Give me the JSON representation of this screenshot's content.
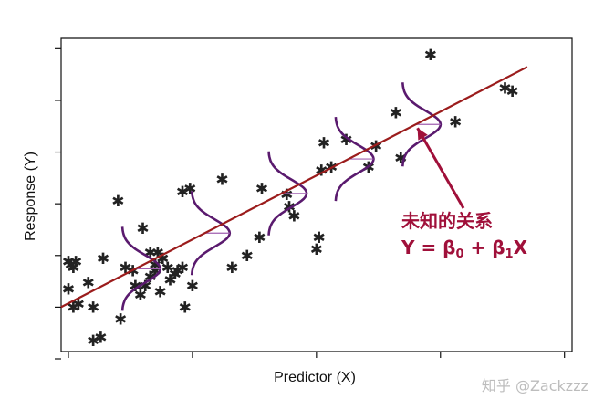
{
  "chart_data": {
    "type": "scatter",
    "xlabel": "Predictor (X)",
    "ylabel": "Response (Y)",
    "xlim": [
      0,
      10.3
    ],
    "ylim": [
      0,
      10.3
    ],
    "x_ticks": [
      0,
      2.5,
      5,
      7.5,
      10
    ],
    "y_ticks": [
      0,
      1.7,
      3.4,
      5.1,
      6.8,
      8.5,
      10.2
    ],
    "tick_labels_shown": false,
    "grid": false,
    "points_marker": "asterisk",
    "points": [
      [
        0,
        3.2
      ],
      [
        0.05,
        3.1
      ],
      [
        0.1,
        3.0
      ],
      [
        0.15,
        3.2
      ],
      [
        0.0,
        2.3
      ],
      [
        0.1,
        1.7
      ],
      [
        0.2,
        1.8
      ],
      [
        0.4,
        2.5
      ],
      [
        0.5,
        0.6
      ],
      [
        0.65,
        0.7
      ],
      [
        0.5,
        1.7
      ],
      [
        0.7,
        3.3
      ],
      [
        1.0,
        5.2
      ],
      [
        1.05,
        1.3
      ],
      [
        1.15,
        3.0
      ],
      [
        1.3,
        2.9
      ],
      [
        1.35,
        2.4
      ],
      [
        1.45,
        2.1
      ],
      [
        1.55,
        2.4
      ],
      [
        1.5,
        4.3
      ],
      [
        1.65,
        3.5
      ],
      [
        1.65,
        2.7
      ],
      [
        1.75,
        2.9
      ],
      [
        1.75,
        3.1
      ],
      [
        1.9,
        3.3
      ],
      [
        1.8,
        3.5
      ],
      [
        1.85,
        2.2
      ],
      [
        2.0,
        3.0
      ],
      [
        2.05,
        2.6
      ],
      [
        2.15,
        2.8
      ],
      [
        2.2,
        2.9
      ],
      [
        2.3,
        3.0
      ],
      [
        2.45,
        5.6
      ],
      [
        2.3,
        5.5
      ],
      [
        2.35,
        1.7
      ],
      [
        2.5,
        2.4
      ],
      [
        3.1,
        5.9
      ],
      [
        3.3,
        3.0
      ],
      [
        3.6,
        3.4
      ],
      [
        3.85,
        4.0
      ],
      [
        3.9,
        5.6
      ],
      [
        4.4,
        5.4
      ],
      [
        4.45,
        5.0
      ],
      [
        4.55,
        4.7
      ],
      [
        5.1,
        6.2
      ],
      [
        5.05,
        4.0
      ],
      [
        5.0,
        3.6
      ],
      [
        5.15,
        7.1
      ],
      [
        5.3,
        6.3
      ],
      [
        5.6,
        7.2
      ],
      [
        6.05,
        6.3
      ],
      [
        6.2,
        7.0
      ],
      [
        6.6,
        8.1
      ],
      [
        6.7,
        6.6
      ],
      [
        7.8,
        7.8
      ],
      [
        8.8,
        8.9
      ],
      [
        8.95,
        8.8
      ],
      [
        7.3,
        10.0
      ]
    ],
    "fit_line": {
      "from": [
        -0.15,
        1.7
      ],
      "to": [
        9.25,
        9.6
      ]
    },
    "density_curves_at_x": [
      1.35,
      2.75,
      4.3,
      5.65,
      7.0
    ],
    "annotation": {
      "title": "未知的关系",
      "formula_prefix": "Y = β",
      "sub0": "0",
      "formula_mid": " + β",
      "sub1": "1",
      "formula_suffix": "X"
    }
  },
  "watermark": "知乎 @Zackzzz",
  "colors": {
    "fit_line": "#9b1c1c",
    "density_curve": "#5a1a6e",
    "mean_tick": "#a060b0",
    "annotation": "#a0103a",
    "points": "#222222"
  }
}
